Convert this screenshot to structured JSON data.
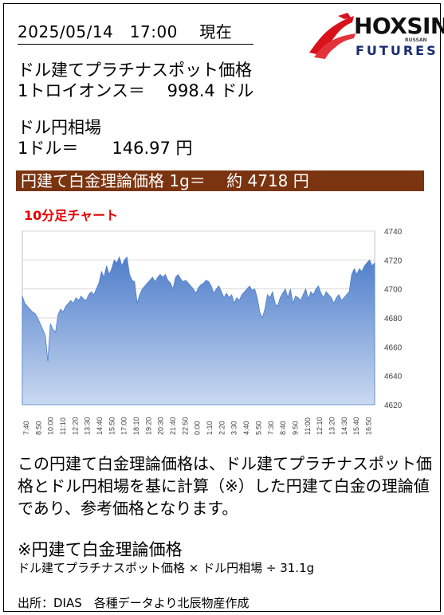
{
  "header": {
    "datetime": "2025/05/14　17:00　 現在"
  },
  "logo": {
    "name": "HOXSIN",
    "sub": "FUTURES",
    "small": "RUSSAN"
  },
  "platinum": {
    "label": "ドル建てプラチナスポット価格",
    "unit_line": "1トロイオンス＝　 998.4 ドル"
  },
  "fx": {
    "label": "ドル円相場",
    "unit_line": "1ドル＝　　146.97 円"
  },
  "banner": {
    "text": "円建て白金理論価格 1g＝　 約 4718 円"
  },
  "chart_title": "10分足チャート",
  "chart_data": {
    "type": "area",
    "ylim": [
      4620,
      4740
    ],
    "yticks": [
      4620,
      4640,
      4660,
      4680,
      4700,
      4720,
      4740
    ],
    "grid": true,
    "fill_color": "#4f7ecb",
    "x_labels": [
      "7:40",
      "8:50",
      "10:00",
      "11:10",
      "12:20",
      "13:30",
      "14:40",
      "15:50",
      "17:00",
      "18:10",
      "19:20",
      "20:30",
      "21:40",
      "22:50",
      "0:00",
      "1:10",
      "2:20",
      "3:30",
      "4:40",
      "5:50",
      "7:30",
      "8:40",
      "9:50",
      "11:00",
      "12:10",
      "13:20",
      "14:30",
      "15:40",
      "16:50"
    ],
    "values": [
      4695,
      4690,
      4688,
      4686,
      4684,
      4683,
      4680,
      4676,
      4672,
      4668,
      4650,
      4676,
      4672,
      4670,
      4682,
      4686,
      4684,
      4688,
      4690,
      4692,
      4690,
      4694,
      4692,
      4695,
      4693,
      4692,
      4696,
      4698,
      4696,
      4700,
      4704,
      4712,
      4708,
      4716,
      4710,
      4714,
      4720,
      4718,
      4722,
      4716,
      4720,
      4722,
      4710,
      4706,
      4705,
      4690,
      4696,
      4700,
      4702,
      4704,
      4706,
      4708,
      4705,
      4708,
      4710,
      4708,
      4710,
      4706,
      4704,
      4700,
      4708,
      4710,
      4707,
      4705,
      4706,
      4704,
      4702,
      4700,
      4697,
      4701,
      4703,
      4704,
      4706,
      4705,
      4702,
      4697,
      4700,
      4702,
      4698,
      4694,
      4697,
      4694,
      4696,
      4690,
      4694,
      4692,
      4696,
      4698,
      4700,
      4702,
      4699,
      4700,
      4694,
      4684,
      4680,
      4686,
      4696,
      4694,
      4698,
      4690,
      4688,
      4694,
      4697,
      4700,
      4694,
      4700,
      4690,
      4695,
      4694,
      4692,
      4696,
      4700,
      4693,
      4698,
      4696,
      4700,
      4702,
      4697,
      4694,
      4698,
      4696,
      4694,
      4690,
      4694,
      4696,
      4692,
      4694,
      4696,
      4698,
      4710,
      4714,
      4710,
      4714,
      4712,
      4716,
      4718,
      4720,
      4716,
      4718
    ]
  },
  "description": "この円建て白金理論価格は、ドル建てプラチナスポット価格とドル円相場を基に計算（※）した円建て白金の理論値であり、参考価格となります。",
  "formula": {
    "title": "※円建て白金理論価格",
    "text": "ドル建てプラチナスポット価格 × ドル円相場 ÷ 31.1g"
  },
  "source": "出所：DIAS　各種データより北辰物産作成"
}
